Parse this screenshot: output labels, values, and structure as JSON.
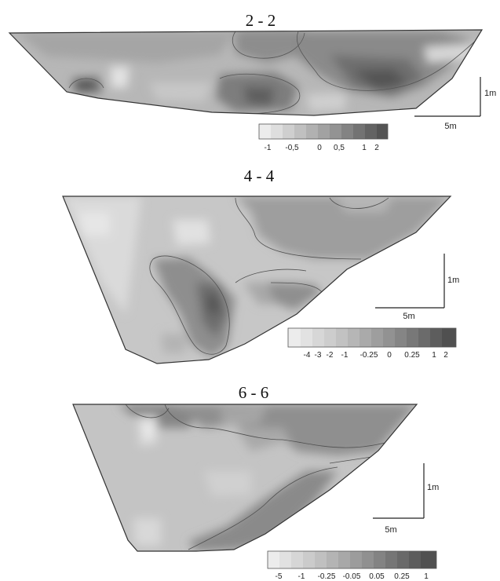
{
  "panels": [
    {
      "title": "2 - 2",
      "scale_vertical": "1m",
      "scale_horizontal": "5m",
      "legend_labels": [
        "-1",
        "-0,5",
        "0",
        "0,5",
        "1",
        "2"
      ]
    },
    {
      "title": "4 - 4",
      "scale_vertical": "1m",
      "scale_horizontal": "5m",
      "legend_labels": [
        "-4",
        "-3",
        "-2",
        "-1",
        "-0.25",
        "0",
        "0.25",
        "1",
        "2"
      ]
    },
    {
      "title": "6 - 6",
      "scale_vertical": "1m",
      "scale_horizontal": "5m",
      "legend_labels": [
        "-5",
        "-1",
        "-0.25",
        "-0.05",
        "0.05",
        "0.25",
        "1"
      ]
    }
  ],
  "colors": {
    "legend_ramp": [
      "#ececec",
      "#e0e0e0",
      "#d3d3d3",
      "#c6c6c6",
      "#b8b8b8",
      "#aaaaaa",
      "#9b9b9b",
      "#8c8c8c",
      "#7c7c7c",
      "#6d6d6d",
      "#5e5e5e"
    ]
  }
}
